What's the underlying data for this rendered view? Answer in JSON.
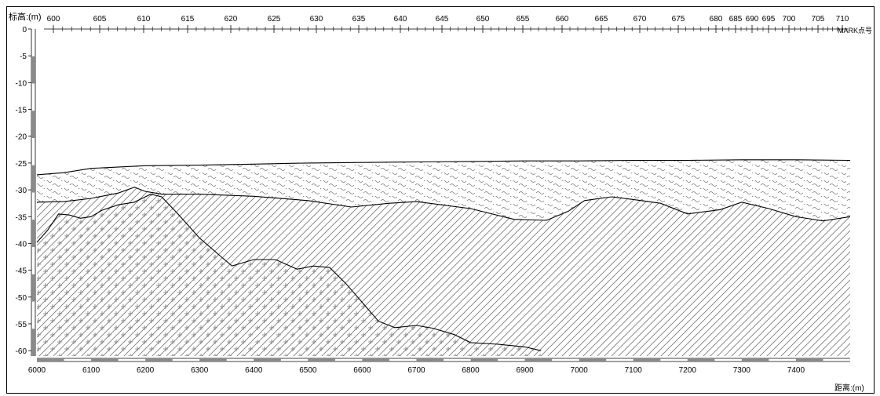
{
  "labels": {
    "elevation_axis": "标高:(m)",
    "distance_axis": "距离:(m)",
    "mark_axis": "MARK点号"
  },
  "axes": {
    "elevation_ticks": [
      0,
      -5,
      -10,
      -15,
      -20,
      -25,
      -30,
      -35,
      -40,
      -45,
      -50,
      -55,
      -60
    ],
    "elevation_range": [
      -61,
      0
    ],
    "mark_ticks": [
      "600",
      "605",
      "610",
      "615",
      "620",
      "625",
      "630",
      "635",
      "640",
      "645",
      "650",
      "655",
      "660",
      "665",
      "670",
      "675",
      "680",
      "685",
      "690",
      "695",
      "700",
      "705",
      "710"
    ],
    "distance_ticks": [
      "6000",
      "6100",
      "6200",
      "6300",
      "6400",
      "6500",
      "6600",
      "6700",
      "6800",
      "6900",
      "7000",
      "7100",
      "7200",
      "7300",
      "7400"
    ],
    "distance_range": [
      6000,
      7500
    ]
  },
  "profile": {
    "top_surface": [
      [
        6000,
        -27.2
      ],
      [
        6050,
        -26.8
      ],
      [
        6100,
        -26.0
      ],
      [
        6200,
        -25.5
      ],
      [
        6300,
        -25.4
      ],
      [
        6400,
        -25.2
      ],
      [
        6500,
        -25.0
      ],
      [
        6600,
        -24.9
      ],
      [
        6700,
        -24.8
      ],
      [
        6800,
        -24.7
      ],
      [
        6900,
        -24.6
      ],
      [
        7000,
        -24.6
      ],
      [
        7100,
        -24.5
      ],
      [
        7200,
        -24.5
      ],
      [
        7300,
        -24.4
      ],
      [
        7400,
        -24.4
      ],
      [
        7500,
        -24.5
      ]
    ],
    "sediment_base": [
      [
        6000,
        -32.3
      ],
      [
        6050,
        -32.2
      ],
      [
        6100,
        -31.6
      ],
      [
        6150,
        -30.6
      ],
      [
        6180,
        -29.5
      ],
      [
        6200,
        -30.3
      ],
      [
        6230,
        -30.8
      ],
      [
        6300,
        -30.8
      ],
      [
        6400,
        -31.2
      ],
      [
        6500,
        -32.0
      ],
      [
        6580,
        -33.2
      ],
      [
        6650,
        -32.5
      ],
      [
        6700,
        -32.2
      ],
      [
        6800,
        -33.5
      ],
      [
        6880,
        -35.5
      ],
      [
        6940,
        -35.7
      ],
      [
        6980,
        -34.0
      ],
      [
        7010,
        -32.0
      ],
      [
        7060,
        -31.3
      ],
      [
        7100,
        -31.8
      ],
      [
        7150,
        -32.5
      ],
      [
        7200,
        -34.5
      ],
      [
        7260,
        -33.7
      ],
      [
        7300,
        -32.3
      ],
      [
        7350,
        -33.5
      ],
      [
        7400,
        -35.0
      ],
      [
        7450,
        -35.8
      ],
      [
        7500,
        -35.0
      ]
    ],
    "bedrock_top": [
      [
        6000,
        -39.8
      ],
      [
        6020,
        -37.5
      ],
      [
        6040,
        -34.5
      ],
      [
        6060,
        -34.7
      ],
      [
        6080,
        -35.3
      ],
      [
        6100,
        -35.0
      ],
      [
        6120,
        -33.8
      ],
      [
        6150,
        -32.8
      ],
      [
        6180,
        -32.3
      ],
      [
        6210,
        -30.8
      ],
      [
        6230,
        -31.3
      ],
      [
        6260,
        -34.5
      ],
      [
        6300,
        -39.0
      ],
      [
        6340,
        -42.5
      ],
      [
        6360,
        -44.2
      ],
      [
        6400,
        -43.0
      ],
      [
        6440,
        -43.0
      ],
      [
        6480,
        -44.8
      ],
      [
        6510,
        -44.2
      ],
      [
        6540,
        -44.5
      ],
      [
        6570,
        -47.5
      ],
      [
        6600,
        -51.0
      ],
      [
        6630,
        -54.5
      ],
      [
        6660,
        -55.7
      ],
      [
        6700,
        -55.3
      ],
      [
        6730,
        -55.8
      ],
      [
        6770,
        -57.0
      ],
      [
        6800,
        -58.5
      ],
      [
        6850,
        -58.8
      ],
      [
        6900,
        -59.3
      ],
      [
        6930,
        -60.0
      ]
    ]
  },
  "colors": {
    "line": "#000000",
    "hatch": "#6e6e6e",
    "scale_bar": "#8a8a8a"
  }
}
